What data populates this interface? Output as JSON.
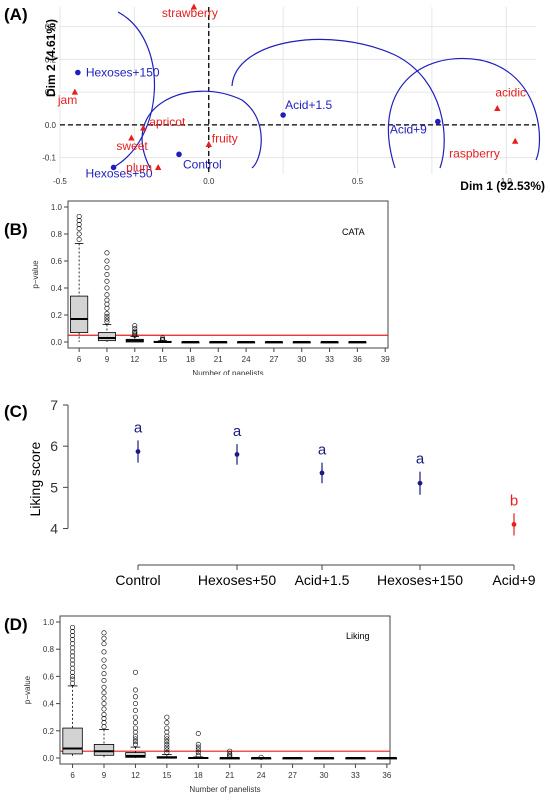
{
  "panels": {
    "a": {
      "label": "(A)"
    },
    "b": {
      "label": "(B)"
    },
    "c": {
      "label": "(C)"
    },
    "d": {
      "label": "(D)"
    }
  },
  "colors": {
    "product": "#1f1fbf",
    "attribute": "#e81e1e",
    "threshold": "#e81e1e",
    "box_fill": "#d3d3d3",
    "axis": "#444444",
    "letter_a": "#1a1a80",
    "letter_b": "#e81e1e"
  },
  "chart_data": [
    {
      "type": "scatter",
      "panel": "A",
      "xlabel": "Dim 1 (92.53%)",
      "ylabel": "Dim 2 (4.61%)",
      "xlim": [
        -0.5,
        1.1
      ],
      "ylim": [
        -0.15,
        0.36
      ],
      "xticks": [
        "-0.5",
        "0.0",
        "0.5",
        "1.0"
      ],
      "yticks": [
        "-0.1",
        "0.0",
        "0.1",
        "0.2",
        "0.3"
      ],
      "grid": true,
      "series": [
        {
          "name": "",
          "marker": "circle",
          "color": "#1f1fbf",
          "points": [
            {
              "label": "Hexoses+150",
              "x": -0.44,
              "y": 0.16
            },
            {
              "label": "Acid+1.5",
              "x": 0.25,
              "y": 0.03
            },
            {
              "label": "Acid+9",
              "x": 0.77,
              "y": 0.01
            },
            {
              "label": "Control",
              "x": -0.1,
              "y": -0.09
            },
            {
              "label": "Hexoses+50",
              "x": -0.32,
              "y": -0.13
            }
          ]
        },
        {
          "name": "",
          "marker": "triangle",
          "color": "#e81e1e",
          "points": [
            {
              "label": "strawberry",
              "x": -0.05,
              "y": 0.36
            },
            {
              "label": "jam",
              "x": -0.45,
              "y": 0.1
            },
            {
              "label": "apricot",
              "x": -0.22,
              "y": -0.01
            },
            {
              "label": "sweet",
              "x": -0.26,
              "y": -0.04
            },
            {
              "label": "plum",
              "x": -0.17,
              "y": -0.13
            },
            {
              "label": "fruity",
              "x": 0.0,
              "y": -0.06
            },
            {
              "label": "acidic",
              "x": 0.97,
              "y": 0.05
            },
            {
              "label": "raspberry",
              "x": 1.03,
              "y": -0.05
            }
          ]
        }
      ]
    },
    {
      "type": "box",
      "panel": "B",
      "annotation": "CATA",
      "xlabel": "Number of panelists",
      "ylabel": "p−value",
      "ylim": [
        0,
        1.0
      ],
      "yticks": [
        "0.0",
        "0.2",
        "0.4",
        "0.6",
        "0.8",
        "1.0"
      ],
      "categories": [
        "6",
        "9",
        "12",
        "15",
        "18",
        "21",
        "24",
        "27",
        "30",
        "33",
        "36",
        "39"
      ],
      "threshold": 0.05,
      "boxes": [
        {
          "q1": 0.07,
          "median": 0.17,
          "q3": 0.34,
          "whisker_low": 0.0,
          "whisker_high": 0.73,
          "outliers": [
            0.76,
            0.8,
            0.84,
            0.87,
            0.9,
            0.93
          ]
        },
        {
          "q1": 0.01,
          "median": 0.03,
          "q3": 0.07,
          "whisker_low": 0.0,
          "whisker_high": 0.13,
          "outliers": [
            0.15,
            0.17,
            0.19,
            0.21,
            0.25,
            0.28,
            0.31,
            0.35,
            0.4,
            0.45,
            0.5,
            0.55,
            0.6,
            0.66
          ]
        },
        {
          "q1": 0.0,
          "median": 0.01,
          "q3": 0.02,
          "whisker_low": 0.0,
          "whisker_high": 0.04,
          "outliers": [
            0.05,
            0.06,
            0.07,
            0.08,
            0.1,
            0.12
          ]
        },
        {
          "q1": 0.0,
          "median": 0.0,
          "q3": 0.005,
          "whisker_low": 0.0,
          "whisker_high": 0.01,
          "outliers": [
            0.015,
            0.02,
            0.03
          ]
        },
        {
          "q1": 0.0,
          "median": 0.0,
          "q3": 0.0,
          "whisker_low": 0.0,
          "whisker_high": 0.0,
          "outliers": []
        },
        {
          "q1": 0.0,
          "median": 0.0,
          "q3": 0.0,
          "whisker_low": 0.0,
          "whisker_high": 0.0,
          "outliers": []
        },
        {
          "q1": 0.0,
          "median": 0.0,
          "q3": 0.0,
          "whisker_low": 0.0,
          "whisker_high": 0.0,
          "outliers": []
        },
        {
          "q1": 0.0,
          "median": 0.0,
          "q3": 0.0,
          "whisker_low": 0.0,
          "whisker_high": 0.0,
          "outliers": []
        },
        {
          "q1": 0.0,
          "median": 0.0,
          "q3": 0.0,
          "whisker_low": 0.0,
          "whisker_high": 0.0,
          "outliers": []
        },
        {
          "q1": 0.0,
          "median": 0.0,
          "q3": 0.0,
          "whisker_low": 0.0,
          "whisker_high": 0.0,
          "outliers": []
        },
        {
          "q1": 0.0,
          "median": 0.0,
          "q3": 0.0,
          "whisker_low": 0.0,
          "whisker_high": 0.0,
          "outliers": []
        },
        null
      ]
    },
    {
      "type": "errorbar",
      "panel": "C",
      "ylabel": "Liking score",
      "ylim": [
        3.6,
        7
      ],
      "yticks": [
        "4",
        "5",
        "6",
        "7"
      ],
      "categories": [
        "Control",
        "Hexoses+50",
        "Acid+1.5",
        "Hexoses+150",
        "Acid+9"
      ],
      "values": [
        5.87,
        5.8,
        5.35,
        5.1,
        4.1
      ],
      "error": [
        0.27,
        0.25,
        0.25,
        0.28,
        0.27
      ],
      "letters": [
        "a",
        "a",
        "a",
        "a",
        "b"
      ]
    },
    {
      "type": "box",
      "panel": "D",
      "annotation": "Liking",
      "xlabel": "Number of panelists",
      "ylabel": "p−value",
      "ylim": [
        0,
        1.0
      ],
      "yticks": [
        "0.0",
        "0.2",
        "0.4",
        "0.6",
        "0.8",
        "1.0"
      ],
      "categories": [
        "6",
        "9",
        "12",
        "15",
        "18",
        "21",
        "24",
        "27",
        "30",
        "33",
        "36"
      ],
      "threshold": 0.05,
      "boxes": [
        {
          "q1": 0.03,
          "median": 0.07,
          "q3": 0.22,
          "whisker_low": 0.0,
          "whisker_high": 0.53,
          "outliers": [
            0.55,
            0.58,
            0.6,
            0.63,
            0.66,
            0.69,
            0.72,
            0.75,
            0.78,
            0.81,
            0.84,
            0.87,
            0.9,
            0.93,
            0.96
          ]
        },
        {
          "q1": 0.02,
          "median": 0.05,
          "q3": 0.1,
          "whisker_low": 0.0,
          "whisker_high": 0.21,
          "outliers": [
            0.23,
            0.26,
            0.29,
            0.32,
            0.36,
            0.4,
            0.44,
            0.48,
            0.52,
            0.57,
            0.62,
            0.67,
            0.72,
            0.78,
            0.84,
            0.88,
            0.92
          ]
        },
        {
          "q1": 0.005,
          "median": 0.015,
          "q3": 0.04,
          "whisker_low": 0.0,
          "whisker_high": 0.08,
          "outliers": [
            0.1,
            0.12,
            0.14,
            0.16,
            0.19,
            0.22,
            0.26,
            0.3,
            0.35,
            0.4,
            0.45,
            0.5,
            0.63
          ]
        },
        {
          "q1": 0.0,
          "median": 0.003,
          "q3": 0.01,
          "whisker_low": 0.0,
          "whisker_high": 0.025,
          "outliers": [
            0.04,
            0.06,
            0.08,
            0.1,
            0.12,
            0.14,
            0.16,
            0.19,
            0.22,
            0.26,
            0.3
          ]
        },
        {
          "q1": 0.0,
          "median": 0.0,
          "q3": 0.003,
          "whisker_low": 0.0,
          "whisker_high": 0.008,
          "outliers": [
            0.02,
            0.04,
            0.06,
            0.08,
            0.1,
            0.18
          ]
        },
        {
          "q1": 0.0,
          "median": 0.0,
          "q3": 0.0,
          "whisker_low": 0.0,
          "whisker_high": 0.002,
          "outliers": [
            0.01,
            0.02,
            0.03,
            0.05
          ]
        },
        {
          "q1": 0.0,
          "median": 0.0,
          "q3": 0.0,
          "whisker_low": 0.0,
          "whisker_high": 0.0,
          "outliers": [
            0.005
          ]
        },
        {
          "q1": 0.0,
          "median": 0.0,
          "q3": 0.0,
          "whisker_low": 0.0,
          "whisker_high": 0.0,
          "outliers": []
        },
        {
          "q1": 0.0,
          "median": 0.0,
          "q3": 0.0,
          "whisker_low": 0.0,
          "whisker_high": 0.0,
          "outliers": []
        },
        {
          "q1": 0.0,
          "median": 0.0,
          "q3": 0.0,
          "whisker_low": 0.0,
          "whisker_high": 0.0,
          "outliers": []
        },
        {
          "q1": 0.0,
          "median": 0.0,
          "q3": 0.0,
          "whisker_low": 0.0,
          "whisker_high": 0.0,
          "outliers": []
        }
      ]
    }
  ]
}
